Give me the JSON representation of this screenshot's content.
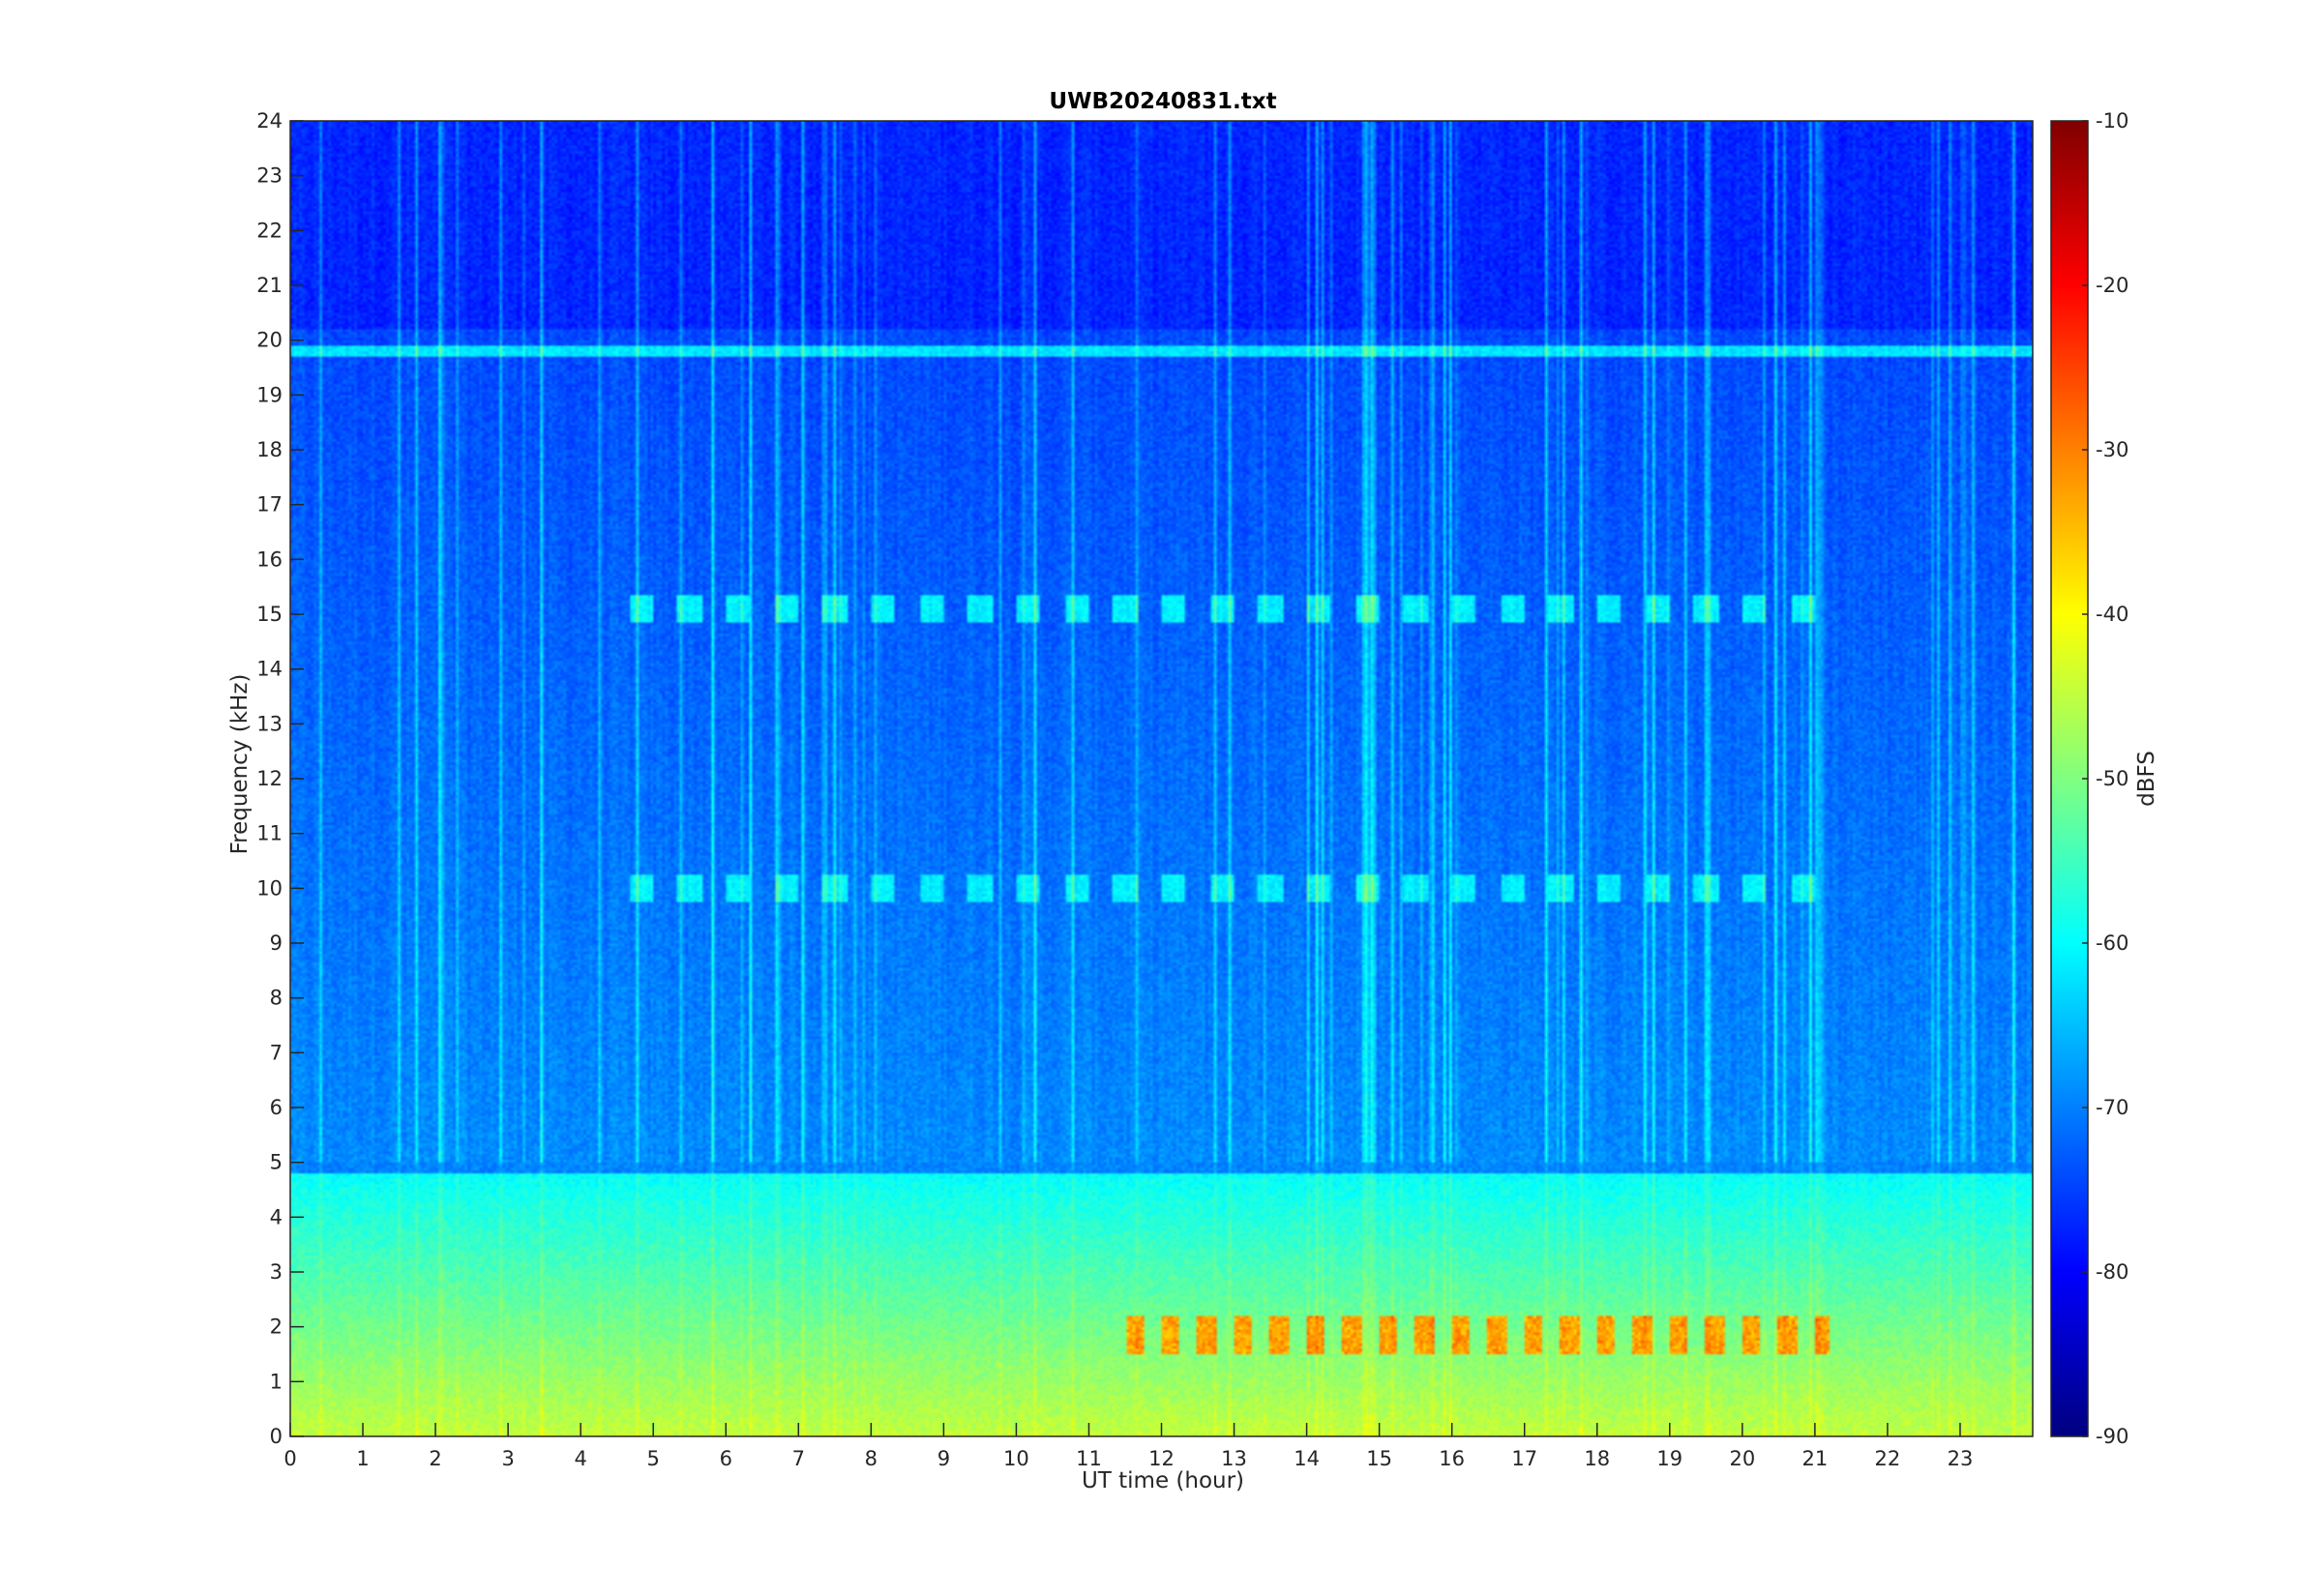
{
  "chart_data": {
    "type": "heatmap",
    "title": "UWB20240831.txt",
    "xlabel": "UT time (hour)",
    "ylabel": "Frequency (kHz)",
    "xlim": [
      0,
      24
    ],
    "ylim": [
      0,
      24
    ],
    "x_ticks": [
      "0",
      "1",
      "2",
      "3",
      "4",
      "5",
      "6",
      "7",
      "8",
      "9",
      "10",
      "11",
      "12",
      "13",
      "14",
      "15",
      "16",
      "17",
      "18",
      "19",
      "20",
      "21",
      "22",
      "23"
    ],
    "y_ticks": [
      "0",
      "1",
      "2",
      "3",
      "4",
      "5",
      "6",
      "7",
      "8",
      "9",
      "10",
      "11",
      "12",
      "13",
      "14",
      "15",
      "16",
      "17",
      "18",
      "19",
      "20",
      "21",
      "22",
      "23",
      "24"
    ],
    "colorbar": {
      "label": "dBFS",
      "range": [
        -90,
        -10
      ],
      "ticks": [
        "-10",
        "-20",
        "-30",
        "-40",
        "-50",
        "-60",
        "-70",
        "-80",
        "-90"
      ],
      "colormap": "jet"
    },
    "features": {
      "background_high_freq_dbfs": -76,
      "background_mid_freq_dbfs": -70,
      "low_freq_band_khz": [
        0,
        4.8
      ],
      "low_freq_band_dbfs": -45,
      "strong_line_khz": 19.8,
      "strong_line_dbfs": -63,
      "pulsed_bands_khz": [
        15.1,
        10.0
      ],
      "pulsed_bands_hours": [
        4.6,
        21.2
      ],
      "hot_band_khz": [
        1.5,
        2.2
      ],
      "hot_band_hours": [
        11.5,
        21.2
      ],
      "hot_band_dbfs": -33
    }
  }
}
